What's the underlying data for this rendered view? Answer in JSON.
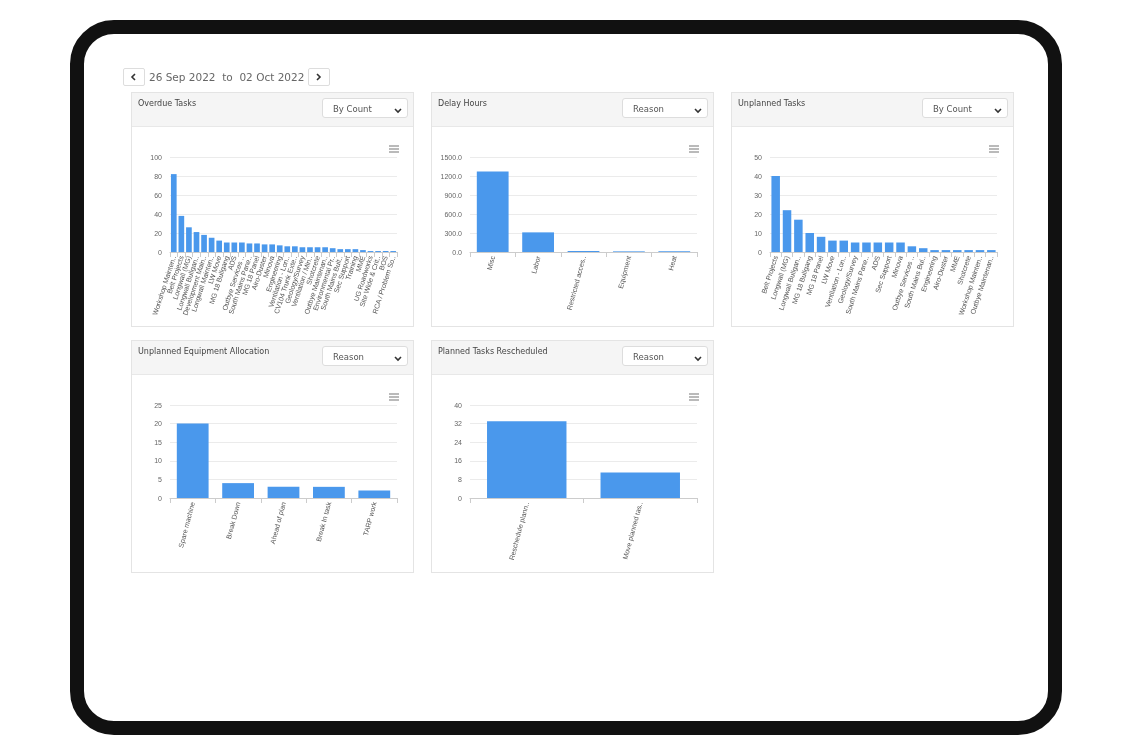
{
  "chart_data": [
    {
      "type": "bar",
      "title": "Overdue Tasks",
      "subtitle": "By Count",
      "annotations": [
        "26 Sep 2022  to  02 Oct 2022"
      ],
      "categories": [
        "Workshop Mainten..",
        "Belt Projects",
        "Longwall (MG)",
        "Longwall Bullgan..",
        "Development Main..",
        "Longwall Mainten..",
        "LW Move",
        "MG 18 Bullgang",
        "ADS",
        "Outbye Services ..",
        "South Mains Pane..",
        "MG 18 Panel",
        "Airo-Duster",
        "Minova",
        "Engineering",
        "Ventilation - Lon..",
        "CV104 Trunk Exte..",
        "Geology/Survey",
        "Ventilation / Min..",
        "Shotcrete",
        "Outbye Maintenan..",
        "Environmental Pr..",
        "South Mains Bult..",
        "Sec Support",
        "Training",
        "MME",
        "UG Roadworks",
        "Site Wide & Crit..",
        "BOS",
        "RCA / Problem So.."
      ],
      "values": [
        82,
        38,
        26,
        21,
        18,
        15,
        12,
        10,
        10,
        10,
        9,
        9,
        8,
        8,
        7,
        6,
        6,
        5,
        5,
        5,
        5,
        4,
        3,
        3,
        3,
        2,
        1,
        1,
        1,
        1
      ],
      "color": "#4a98ec",
      "ylim": [
        0,
        100
      ],
      "yticks": [
        0,
        20,
        40,
        60,
        80,
        100
      ],
      "grid": "y"
    },
    {
      "type": "bar",
      "title": "Delay Hours",
      "subtitle": "Reason",
      "categories": [
        "Misc",
        "Labor",
        "Restricted acces..",
        "Equipment",
        "Heat"
      ],
      "values": [
        1270,
        310,
        15,
        10,
        10
      ],
      "color": "#4a98ec",
      "ylim": [
        0,
        1500
      ],
      "yticks": [
        {
          "value": 0,
          "label": "0.0"
        },
        {
          "value": 300,
          "label": "300.0"
        },
        {
          "value": 600,
          "label": "600.0"
        },
        {
          "value": 900,
          "label": "900.0"
        },
        {
          "value": 1200,
          "label": "1200.0"
        },
        {
          "value": 1500,
          "label": "1500.0"
        }
      ],
      "grid": "y"
    },
    {
      "type": "bar",
      "title": "Unplanned Tasks",
      "subtitle": "By Count",
      "categories": [
        "Belt Projects",
        "Longwall (MG)",
        "Longwall Bullgan..",
        "MG 18 Bullgang",
        "MG 18 Panel",
        "LW Move",
        "Ventilation - Lon..",
        "Geology/Survey",
        "South Mains Pane..",
        "ADS",
        "Sec Support",
        "Minova",
        "Outbye Services ..",
        "South Mains Bul..",
        "Engineering",
        "Airo-Duster",
        "MME",
        "Shotcrete",
        "Workshop Mainten..",
        "Outbye Maintenan.."
      ],
      "values": [
        40,
        22,
        17,
        10,
        8,
        6,
        6,
        5,
        5,
        5,
        5,
        5,
        3,
        2,
        1,
        1,
        1,
        1,
        1,
        1
      ],
      "color": "#4a98ec",
      "ylim": [
        0,
        50
      ],
      "yticks": [
        0,
        10,
        20,
        30,
        40,
        50
      ],
      "grid": "y"
    },
    {
      "type": "bar",
      "title": "Unplanned Equipment Allocation",
      "subtitle": "Reason",
      "categories": [
        "Spare machine",
        "Break Down",
        "Ahead of plan",
        "Break In task",
        "TARP work"
      ],
      "values": [
        20,
        4,
        3,
        3,
        2
      ],
      "color": "#4a98ec",
      "ylim": [
        0,
        25
      ],
      "yticks": [
        0,
        5,
        10,
        15,
        20,
        25
      ],
      "grid": "y"
    },
    {
      "type": "bar",
      "title": "Planned Tasks Rescheduled",
      "subtitle": "Reason",
      "categories": [
        "Reschedule plann..",
        "Move planned tas.."
      ],
      "values": [
        33,
        11
      ],
      "color": "#4a98ec",
      "ylim": [
        0,
        40
      ],
      "yticks": [
        0,
        8,
        16,
        24,
        32,
        40
      ],
      "grid": "y"
    }
  ]
}
